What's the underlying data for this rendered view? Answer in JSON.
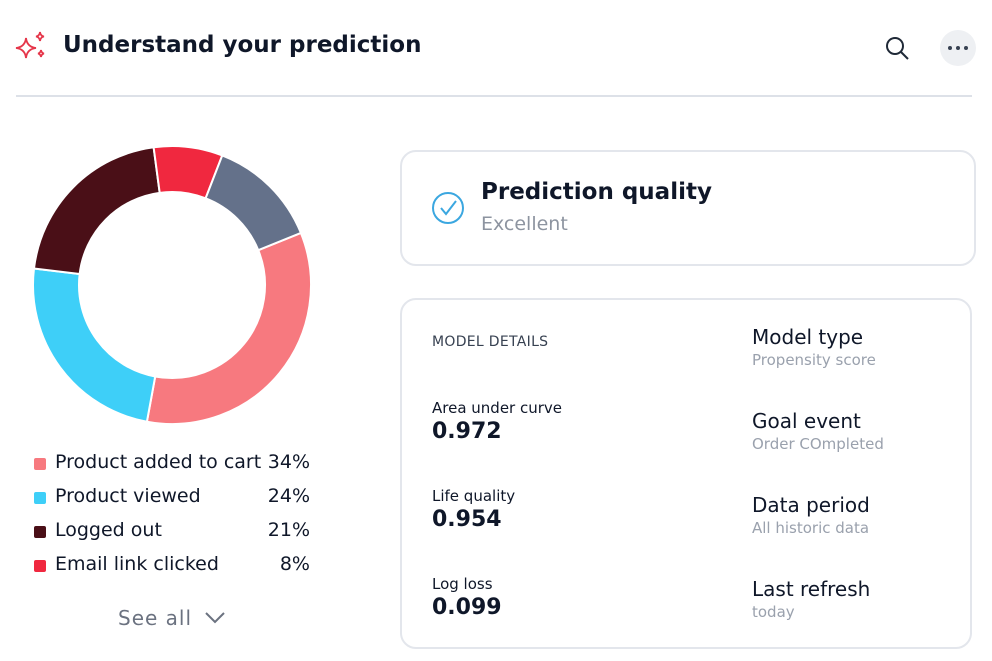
{
  "header": {
    "title": "Understand your prediction"
  },
  "chart_data": {
    "type": "pie",
    "donut": true,
    "categories": [
      "Product added to cart",
      "Product viewed",
      "Logged out",
      "Email link clicked",
      null
    ],
    "values": [
      34,
      24,
      21,
      8,
      13
    ],
    "value_labels": [
      "34%",
      "24%",
      "21%",
      "8%",
      null
    ],
    "colors": [
      "#f7797f",
      "#3ecff8",
      "#4a0f17",
      "#f0283f",
      "#64718a"
    ]
  },
  "see_all": "See all",
  "quality": {
    "title": "Prediction quality",
    "value": "Excellent"
  },
  "details": {
    "heading": "MODEL DETAILS",
    "metrics": [
      {
        "label": "Area under curve",
        "value": "0.972"
      },
      {
        "label": "Life quality",
        "value": "0.954"
      },
      {
        "label": "Log loss",
        "value": "0.099"
      }
    ],
    "properties": [
      {
        "label": "Model type",
        "value": "Propensity score"
      },
      {
        "label": "Goal event",
        "value": "Order COmpleted"
      },
      {
        "label": "Data period",
        "value": "All historic data"
      },
      {
        "label": "Last refresh",
        "value": "today"
      }
    ]
  }
}
